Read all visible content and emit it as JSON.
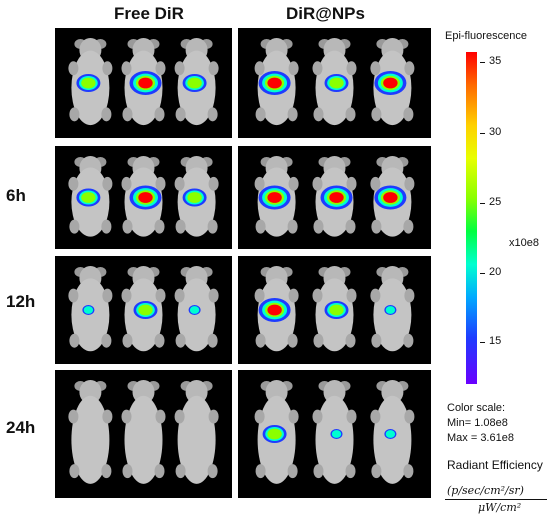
{
  "column_headers": [
    "Free DiR",
    "DiR@NPs"
  ],
  "row_labels": [
    "6h",
    "12h",
    "24h"
  ],
  "color_scale": {
    "title": "Epi-fluorescence",
    "ticks": [
      "35",
      "30",
      "25",
      "20",
      "15"
    ],
    "multiplier": "x10e8",
    "heading": "Color scale:",
    "min": "Min= 1.08e8",
    "max": "Max = 3.61e8",
    "quantity": "Radiant Efficiency",
    "unit_numerator": "(p/sec/cm²/sr)",
    "unit_denominator": "μW/cm²"
  }
}
